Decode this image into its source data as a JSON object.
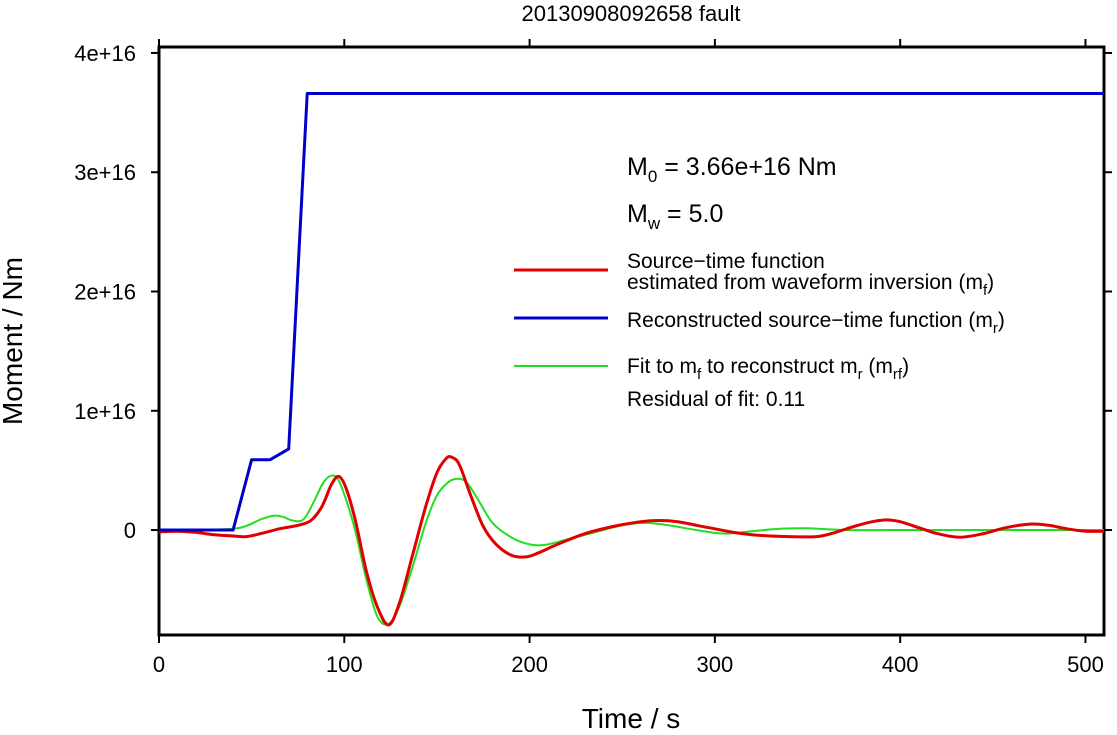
{
  "chart_data": {
    "type": "line",
    "title": "20130908092658 fault",
    "xlabel": "Time / s",
    "ylabel": "Moment / Nm",
    "xlim": [
      0,
      510
    ],
    "ylim": [
      -8800000000000000.0,
      4.05e+16
    ],
    "x_ticks": [
      0,
      100,
      200,
      300,
      400,
      500
    ],
    "x_tick_labels": [
      "0",
      "100",
      "200",
      "300",
      "400",
      "500"
    ],
    "y_ticks": [
      0,
      1e+16,
      2e+16,
      3e+16,
      4e+16
    ],
    "y_tick_labels": [
      "0",
      "1e+16",
      "2e+16",
      "3e+16",
      "4e+16"
    ],
    "grid": false,
    "legend_position": "right",
    "annotations": {
      "m0": {
        "base": "M",
        "sub": "0",
        "rest": " = 3.66e+16 Nm"
      },
      "mw": {
        "base": "M",
        "sub": "w",
        "rest": " = 5.0"
      },
      "residual": "Residual of fit: 0.11"
    },
    "series": [
      {
        "key": "red",
        "color": "#e00000",
        "legend_line1": "Source−time function",
        "legend_line2_parts": [
          {
            "t": "estimated from waveform inversion (m"
          },
          {
            "t": "f",
            "sub": true
          },
          {
            "t": ")"
          }
        ],
        "x": [
          0,
          10,
          20,
          30,
          40,
          47,
          55,
          65,
          75,
          82,
          88,
          93,
          97,
          101,
          106,
          112,
          118,
          124,
          130,
          137,
          144,
          150,
          155,
          158,
          162,
          168,
          175,
          182,
          190,
          198,
          205,
          215,
          230,
          245,
          260,
          270,
          280,
          290,
          300,
          310,
          320,
          330,
          340,
          355,
          365,
          375,
          385,
          393,
          400,
          410,
          420,
          432,
          445,
          457,
          470,
          480,
          490,
          500,
          510
        ],
        "y": [
          -150000000000000.0,
          -100000000000000.0,
          -200000000000000.0,
          -400000000000000.0,
          -500000000000000.0,
          -550000000000000.0,
          -300000000000000.0,
          100000000000000.0,
          400000000000000.0,
          800000000000000.0,
          2000000000000000.0,
          3800000000000000.0,
          4500000000000000.0,
          3500000000000000.0,
          800000000000000.0,
          -3500000000000000.0,
          -6500000000000000.0,
          -7950000000000000.0,
          -6000000000000000.0,
          -2000000000000000.0,
          2000000000000000.0,
          4800000000000000.0,
          6000000000000000.0,
          6100000000000000.0,
          5500000000000000.0,
          3000000000000000.0,
          300000000000000.0,
          -1200000000000000.0,
          -2100000000000000.0,
          -2250000000000000.0,
          -1900000000000000.0,
          -1200000000000000.0,
          -300000000000000.0,
          300000000000000.0,
          700000000000000.0,
          800000000000000.0,
          700000000000000.0,
          400000000000000.0,
          100000000000000.0,
          -200000000000000.0,
          -400000000000000.0,
          -500000000000000.0,
          -550000000000000.0,
          -550000000000000.0,
          -200000000000000.0,
          300000000000000.0,
          700000000000000.0,
          850000000000000.0,
          700000000000000.0,
          200000000000000.0,
          -300000000000000.0,
          -600000000000000.0,
          -300000000000000.0,
          200000000000000.0,
          500000000000000.0,
          400000000000000.0,
          100000000000000.0,
          -100000000000000.0,
          -100000000000000.0
        ]
      },
      {
        "key": "blue",
        "color": "#0000cc",
        "legend_parts": [
          {
            "t": "Reconstructed source−time function (m"
          },
          {
            "t": "r",
            "sub": true
          },
          {
            "t": ")"
          }
        ],
        "x": [
          0,
          40,
          50,
          60,
          70,
          80,
          510
        ],
        "y": [
          0,
          0,
          5900000000000000.0,
          5900000000000000.0,
          6800000000000000.0,
          3.66e+16,
          3.66e+16
        ]
      },
      {
        "key": "green",
        "color": "#22dd22",
        "legend_parts": [
          {
            "t": "Fit to m"
          },
          {
            "t": "f",
            "sub": true
          },
          {
            "t": " to reconstruct m"
          },
          {
            "t": "r",
            "sub": true
          },
          {
            "t": " (m"
          },
          {
            "t": "rf",
            "sub": true
          },
          {
            "t": ")"
          }
        ],
        "x": [
          0,
          20,
          40,
          48,
          55,
          62,
          67,
          72,
          78,
          84,
          88,
          92,
          96,
          100,
          106,
          112,
          118,
          124,
          130,
          137,
          144,
          150,
          156,
          161,
          166,
          172,
          180,
          190,
          200,
          208,
          220,
          235,
          250,
          262,
          275,
          290,
          305,
          320,
          335,
          350,
          370,
          400,
          430,
          460,
          490,
          510
        ],
        "y": [
          0,
          0,
          100000000000000.0,
          400000000000000.0,
          900000000000000.0,
          1200000000000000.0,
          1100000000000000.0,
          800000000000000.0,
          900000000000000.0,
          2500000000000000.0,
          3800000000000000.0,
          4500000000000000.0,
          4400000000000000.0,
          3000000000000000.0,
          -100000000000000.0,
          -4200000000000000.0,
          -7300000000000000.0,
          -7850000000000000.0,
          -6300000000000000.0,
          -3000000000000000.0,
          600000000000000.0,
          2900000000000000.0,
          4000000000000000.0,
          4300000000000000.0,
          4000000000000000.0,
          2600000000000000.0,
          600000000000000.0,
          -600000000000000.0,
          -1200000000000000.0,
          -1250000000000000.0,
          -800000000000000.0,
          -200000000000000.0,
          400000000000000.0,
          600000000000000.0,
          400000000000000.0,
          0,
          -300000000000000.0,
          -100000000000000.0,
          100000000000000.0,
          150000000000000.0,
          0,
          0,
          0,
          0,
          0,
          0
        ]
      }
    ]
  }
}
